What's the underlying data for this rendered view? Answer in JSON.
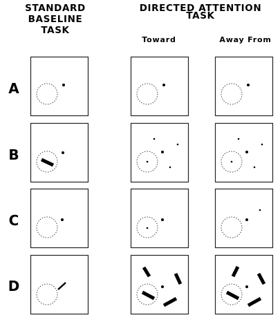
{
  "headers": {
    "standard_line1": "STANDARD",
    "standard_line2": "BASELINE",
    "standard_line3": "TASK",
    "directed_line1": "DIRECTED ATTENTION",
    "directed_line2": "TASK",
    "toward": "Toward",
    "away_from": "Away From"
  },
  "rows": [
    {
      "label": "A"
    },
    {
      "label": "B"
    },
    {
      "label": "C"
    },
    {
      "label": "D"
    }
  ]
}
